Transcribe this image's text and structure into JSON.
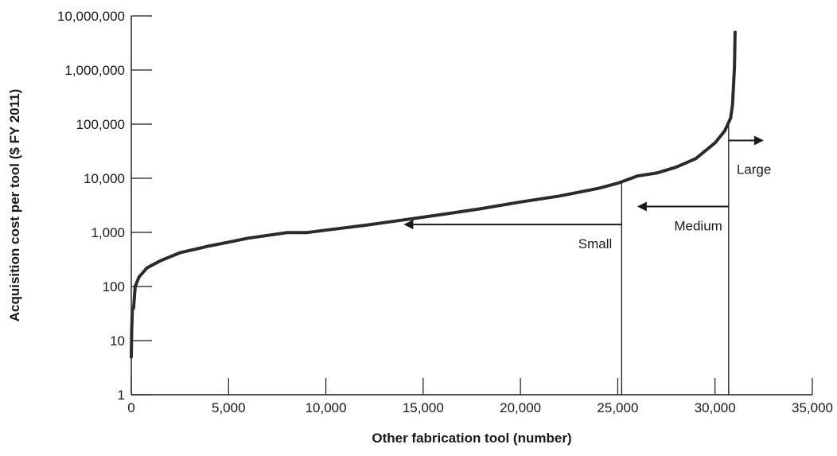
{
  "chart_data": {
    "type": "line",
    "title": "",
    "xlabel": "Other fabrication tool (number)",
    "ylabel": "Acquisition cost per tool ($ FY 2011)",
    "xlim": [
      0,
      35000
    ],
    "ylim": [
      1,
      10000000
    ],
    "y_scale": "log",
    "x_ticks": [
      0,
      5000,
      10000,
      15000,
      20000,
      25000,
      30000,
      35000
    ],
    "x_tick_labels": [
      "0",
      "5,000",
      "10,000",
      "15,000",
      "20,000",
      "25,000",
      "30,000",
      "35,000"
    ],
    "y_ticks": [
      1,
      10,
      100,
      1000,
      10000,
      100000,
      1000000,
      10000000
    ],
    "y_tick_labels": [
      "1",
      "10",
      "100",
      "1,000",
      "10,000",
      "100,000",
      "1,000,000",
      "10,000,000"
    ],
    "grid": false,
    "series": [
      {
        "color": "#2b2b2b",
        "points": [
          [
            0,
            5
          ],
          [
            20,
            15
          ],
          [
            60,
            40
          ],
          [
            120,
            40
          ],
          [
            200,
            100
          ],
          [
            400,
            150
          ],
          [
            800,
            220
          ],
          [
            1500,
            300
          ],
          [
            2500,
            420
          ],
          [
            4000,
            560
          ],
          [
            5000,
            660
          ],
          [
            6000,
            780
          ],
          [
            7000,
            880
          ],
          [
            8000,
            990
          ],
          [
            9000,
            990
          ],
          [
            10000,
            1100
          ],
          [
            12000,
            1350
          ],
          [
            14000,
            1700
          ],
          [
            16000,
            2150
          ],
          [
            18000,
            2750
          ],
          [
            20000,
            3650
          ],
          [
            22000,
            4700
          ],
          [
            24000,
            6500
          ],
          [
            25000,
            8100
          ],
          [
            26000,
            11000
          ],
          [
            27000,
            12500
          ],
          [
            28000,
            16000
          ],
          [
            29000,
            23000
          ],
          [
            30000,
            45000
          ],
          [
            30500,
            75000
          ],
          [
            30800,
            130000
          ],
          [
            30900,
            230000
          ],
          [
            30950,
            500000
          ],
          [
            31000,
            1200000
          ],
          [
            31030,
            5000000
          ]
        ]
      }
    ],
    "boundaries": [
      25200,
      30700
    ],
    "annotations": [
      {
        "text": "Small",
        "arrow_from_x": 25200,
        "arrow_to_x": 14000,
        "arrow_y": 1400,
        "direction": "left"
      },
      {
        "text": "Medium",
        "arrow_from_x": 30700,
        "arrow_to_x": 26000,
        "arrow_y": 3000,
        "direction": "left"
      },
      {
        "text": "Large",
        "arrow_from_x": 30700,
        "arrow_to_x": 32500,
        "arrow_y": 50000,
        "direction": "right"
      }
    ]
  }
}
